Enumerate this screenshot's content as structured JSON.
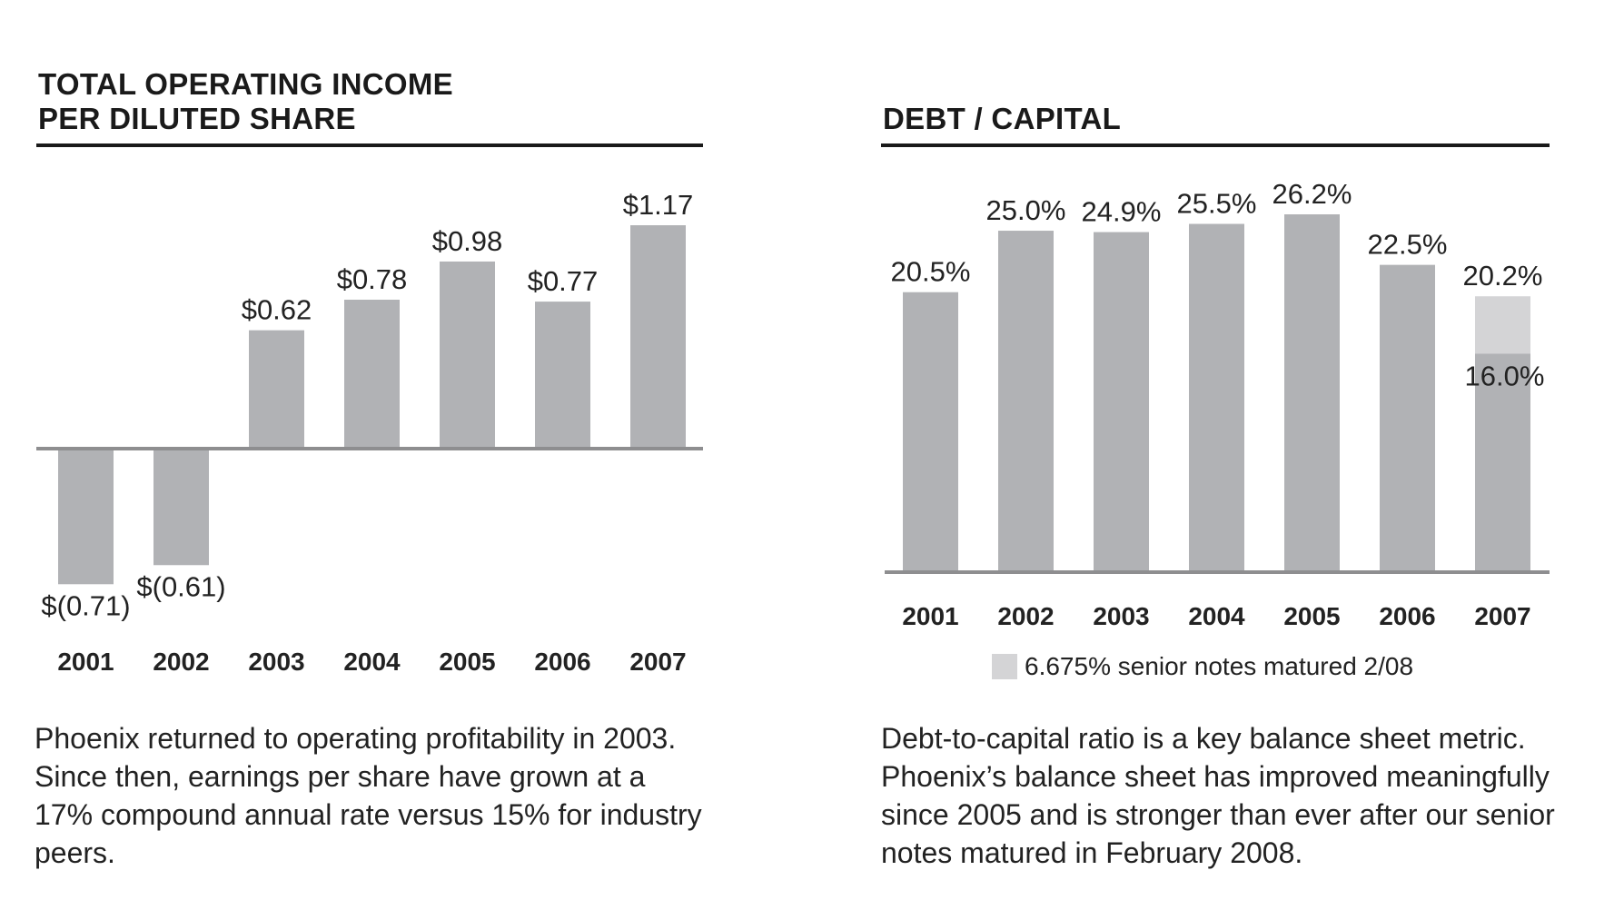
{
  "colors": {
    "bar": "#b1b2b5",
    "bar_light": "#d4d4d6",
    "axis": "#8e8e90",
    "rule": "#1a1a1a"
  },
  "left": {
    "title_line1": "TOTAL OPERATING INCOME",
    "title_line2": "PER DILUTED SHARE",
    "caption": "Phoenix returned to operating profitability in 2003. Since then, earnings per share have grown at a 17% compound annual rate versus 15% for industry peers."
  },
  "right": {
    "title": "DEBT / CAPITAL",
    "legend": "6.675% senior notes matured 2/08",
    "caption": "Debt-to-capital ratio is a key balance sheet metric. Phoenix’s balance sheet has improved meaningfully since 2005 and is stronger than ever after our senior notes matured in February 2008."
  },
  "chart_data": [
    {
      "type": "bar",
      "title": "TOTAL OPERATING INCOME PER DILUTED SHARE",
      "categories": [
        "2001",
        "2002",
        "2003",
        "2004",
        "2005",
        "2006",
        "2007"
      ],
      "values": [
        -0.71,
        -0.61,
        0.62,
        0.78,
        0.98,
        0.77,
        1.17
      ],
      "labels": [
        "$(0.71)",
        "$(0.61)",
        "$0.62",
        "$0.78",
        "$0.98",
        "$0.77",
        "$1.17"
      ],
      "ylim": [
        -0.71,
        1.17
      ],
      "grid": false
    },
    {
      "type": "bar",
      "title": "DEBT / CAPITAL",
      "categories": [
        "2001",
        "2002",
        "2003",
        "2004",
        "2005",
        "2006",
        "2007"
      ],
      "values": [
        20.5,
        25.0,
        24.9,
        25.5,
        26.2,
        22.5,
        20.2
      ],
      "labels": [
        "20.5%",
        "25.0%",
        "24.9%",
        "25.5%",
        "26.2%",
        "22.5%",
        "20.2%"
      ],
      "adjusted": {
        "category": "2007",
        "value": 16.0,
        "label": "16.0%"
      },
      "legend": "6.675% senior notes matured 2/08",
      "legend_position": "bottom",
      "ylim": [
        0,
        26.2
      ],
      "grid": false
    }
  ]
}
